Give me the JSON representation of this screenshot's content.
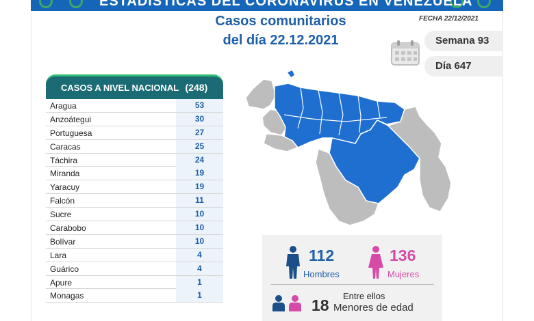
{
  "banner": {
    "title": "ESTADÍSTICAS DEL CORONAVIRUS EN VENEZUELA"
  },
  "header": {
    "title_line1": "Casos comunitarios",
    "title_line2": "del día 22.12.2021",
    "fecha": "FECHA 22/12/2021",
    "semana": "Semana 93",
    "dia": "Día 647"
  },
  "national": {
    "label": "CASOS A NIVEL NACIONAL",
    "total": "(248)"
  },
  "chart_data": {
    "type": "table",
    "title": "CASOS A NIVEL NACIONAL (248)",
    "categories": [
      "Aragua",
      "Anzoátegui",
      "Portuguesa",
      "Caracas",
      "Táchira",
      "Miranda",
      "Yaracuy",
      "Falcón",
      "Sucre",
      "Carabobo",
      "Bolívar",
      "Lara",
      "Guárico",
      "Apure",
      "Monagas"
    ],
    "values": [
      53,
      30,
      27,
      25,
      24,
      19,
      19,
      11,
      10,
      10,
      10,
      4,
      4,
      1,
      1
    ]
  },
  "stats": {
    "men_count": "112",
    "men_label": "Hombres",
    "women_count": "136",
    "women_label": "Mujeres",
    "entre": "Entre ellos",
    "minors_count": "18",
    "minors_label": "Menores de edad"
  },
  "colors": {
    "brand_blue": "#1f5fa8",
    "teal": "#1b6b75",
    "green": "#2fbf74",
    "pink": "#d64aa8",
    "map_blue": "#1e6fd0",
    "map_gray": "#bdbdbd"
  },
  "icons": [
    "calendar-icon",
    "man-icon",
    "woman-icon",
    "minors-icon",
    "virus-icon"
  ]
}
